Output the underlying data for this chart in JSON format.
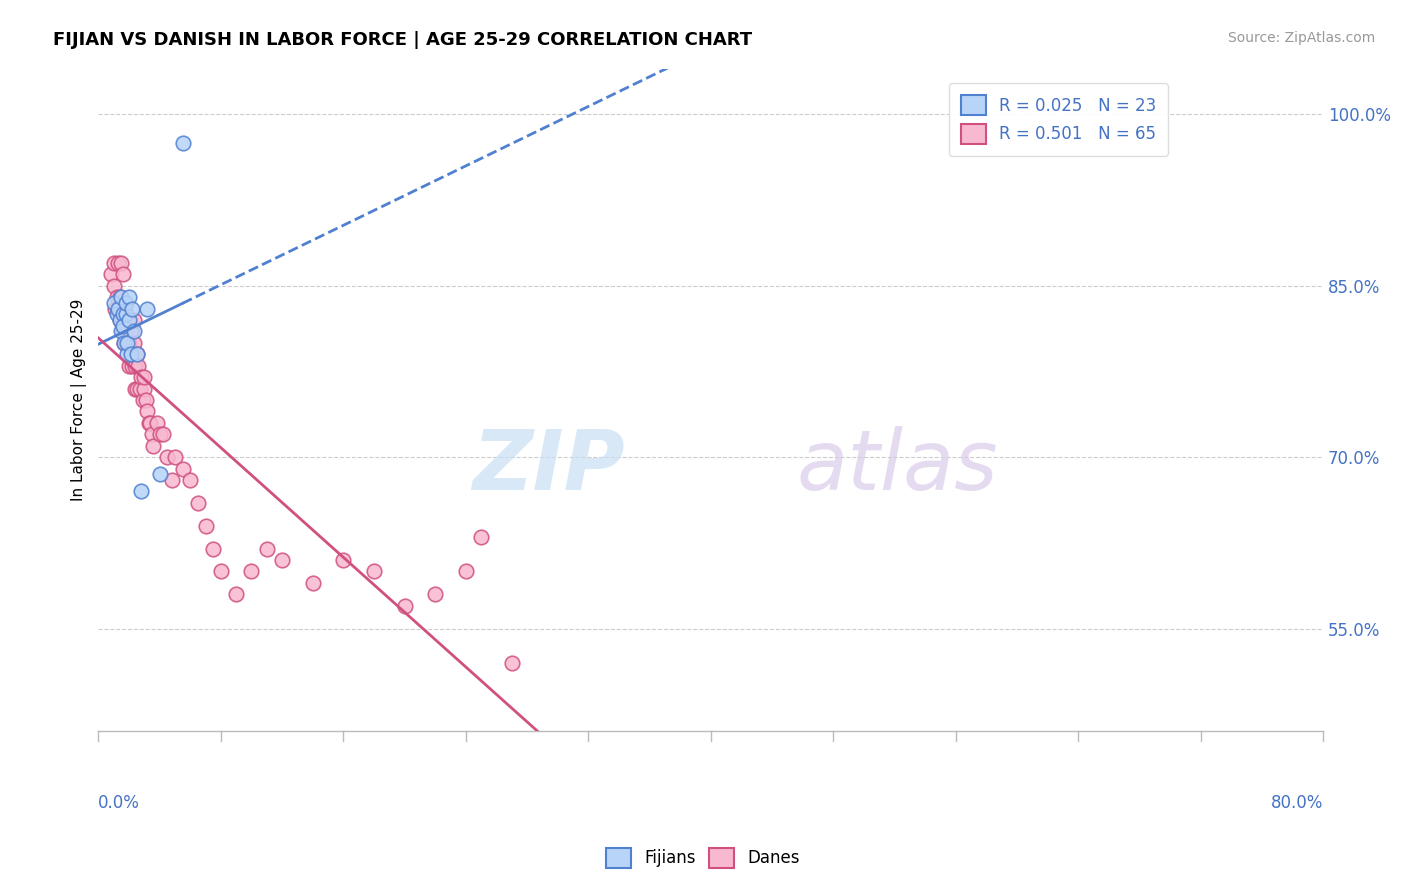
{
  "title": "FIJIAN VS DANISH IN LABOR FORCE | AGE 25-29 CORRELATION CHART",
  "source_text": "Source: ZipAtlas.com",
  "ylabel": "In Labor Force | Age 25-29",
  "ytick_labels": [
    "55.0%",
    "70.0%",
    "85.0%",
    "100.0%"
  ],
  "ytick_vals": [
    0.55,
    0.7,
    0.85,
    1.0
  ],
  "xmin": 0.0,
  "xmax": 0.8,
  "ymin": 0.46,
  "ymax": 1.04,
  "legend_r_fijian": "R = 0.025",
  "legend_n_fijian": "N = 23",
  "legend_r_danish": "R = 0.501",
  "legend_n_danish": "N = 65",
  "fijian_fill": "#b8d4f8",
  "danish_fill": "#f8b8d0",
  "fijian_edge": "#5080d0",
  "danish_edge": "#d05080",
  "fijian_line": "#5080d0",
  "danish_line": "#d05080",
  "fijians_x": [
    0.01,
    0.012,
    0.013,
    0.014,
    0.015,
    0.015,
    0.016,
    0.016,
    0.017,
    0.018,
    0.018,
    0.019,
    0.019,
    0.02,
    0.02,
    0.021,
    0.022,
    0.023,
    0.025,
    0.028,
    0.032,
    0.04,
    0.055
  ],
  "fijians_y": [
    0.835,
    0.825,
    0.83,
    0.82,
    0.81,
    0.84,
    0.825,
    0.815,
    0.8,
    0.825,
    0.835,
    0.79,
    0.8,
    0.84,
    0.82,
    0.79,
    0.83,
    0.81,
    0.79,
    0.67,
    0.83,
    0.685,
    0.975
  ],
  "danes_x": [
    0.008,
    0.01,
    0.01,
    0.011,
    0.012,
    0.013,
    0.013,
    0.014,
    0.014,
    0.015,
    0.015,
    0.016,
    0.016,
    0.017,
    0.017,
    0.018,
    0.018,
    0.019,
    0.02,
    0.02,
    0.021,
    0.021,
    0.022,
    0.023,
    0.023,
    0.024,
    0.024,
    0.025,
    0.025,
    0.026,
    0.027,
    0.028,
    0.029,
    0.03,
    0.03,
    0.031,
    0.032,
    0.033,
    0.034,
    0.035,
    0.036,
    0.038,
    0.04,
    0.042,
    0.045,
    0.048,
    0.05,
    0.055,
    0.06,
    0.065,
    0.07,
    0.075,
    0.08,
    0.09,
    0.1,
    0.11,
    0.12,
    0.14,
    0.16,
    0.18,
    0.2,
    0.22,
    0.24,
    0.25,
    0.27
  ],
  "danes_y": [
    0.86,
    0.85,
    0.87,
    0.83,
    0.84,
    0.87,
    0.83,
    0.84,
    0.82,
    0.83,
    0.87,
    0.86,
    0.81,
    0.83,
    0.8,
    0.81,
    0.8,
    0.82,
    0.78,
    0.8,
    0.79,
    0.81,
    0.78,
    0.8,
    0.82,
    0.76,
    0.78,
    0.79,
    0.76,
    0.78,
    0.76,
    0.77,
    0.75,
    0.76,
    0.77,
    0.75,
    0.74,
    0.73,
    0.73,
    0.72,
    0.71,
    0.73,
    0.72,
    0.72,
    0.7,
    0.68,
    0.7,
    0.69,
    0.68,
    0.66,
    0.64,
    0.62,
    0.6,
    0.58,
    0.6,
    0.62,
    0.61,
    0.59,
    0.61,
    0.6,
    0.57,
    0.58,
    0.6,
    0.63,
    0.52
  ]
}
